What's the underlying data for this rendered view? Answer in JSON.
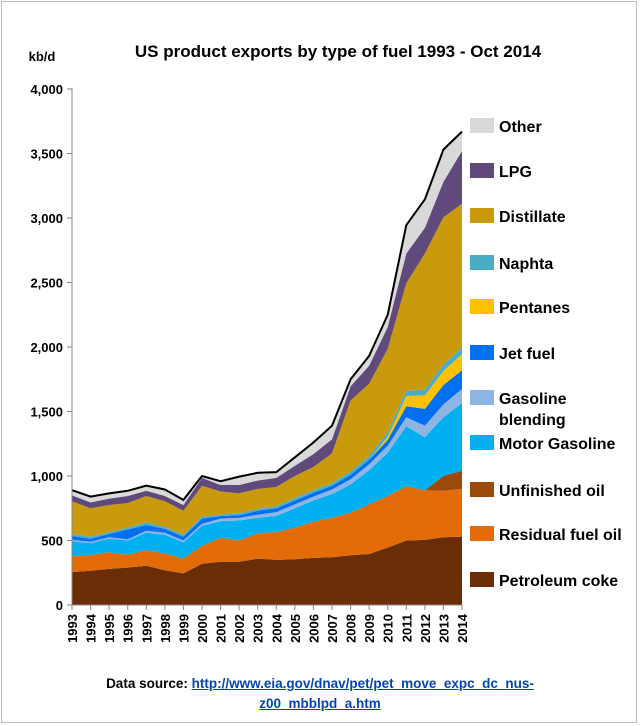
{
  "chart_data": {
    "type": "area",
    "title": "US product exports by type of fuel 1993 - Oct 2014",
    "ylabel": "kb/d",
    "xlabel": "",
    "ylim": [
      0,
      4000
    ],
    "yticks": [
      "0",
      "500",
      "1,000",
      "1,500",
      "2,000",
      "2,500",
      "3,000",
      "3,500",
      "4,000"
    ],
    "categories": [
      "1993",
      "1994",
      "1995",
      "1996",
      "1997",
      "1998",
      "1999",
      "2000",
      "2001",
      "2002",
      "2003",
      "2004",
      "2005",
      "2006",
      "2007",
      "2008",
      "2009",
      "2010",
      "2011",
      "2012",
      "2013",
      "2014"
    ],
    "stacked": true,
    "legend_position": "right",
    "grid": false,
    "series": [
      {
        "name": "Petroleum coke",
        "color": "#6b2d06",
        "values": [
          255,
          265,
          280,
          290,
          305,
          270,
          245,
          320,
          335,
          335,
          360,
          350,
          355,
          365,
          370,
          385,
          395,
          445,
          500,
          505,
          525,
          530
        ]
      },
      {
        "name": "Residual fuel oil",
        "color": "#e36c09",
        "values": [
          125,
          120,
          130,
          100,
          120,
          130,
          115,
          140,
          185,
          165,
          195,
          215,
          245,
          280,
          305,
          330,
          385,
          400,
          420,
          385,
          360,
          370
        ]
      },
      {
        "name": "Unfinished oil",
        "color": "#9c4a0c",
        "values": [
          0,
          0,
          0,
          0,
          0,
          0,
          0,
          0,
          0,
          0,
          0,
          0,
          0,
          0,
          0,
          0,
          0,
          0,
          0,
          0,
          115,
          140
        ]
      },
      {
        "name": "Motor Gasoline",
        "color": "#00b0f0",
        "values": [
          115,
          95,
          105,
          110,
          135,
          145,
          125,
          155,
          130,
          155,
          120,
          125,
          150,
          165,
          185,
          220,
          265,
          335,
          465,
          410,
          455,
          525
        ]
      },
      {
        "name": "Gasoline blending",
        "color": "#8eb4e3",
        "values": [
          10,
          10,
          10,
          10,
          15,
          15,
          15,
          15,
          20,
          20,
          25,
          30,
          30,
          30,
          35,
          40,
          45,
          55,
          70,
          90,
          100,
          110
        ]
      },
      {
        "name": "Jet fuel",
        "color": "#0070f0",
        "values": [
          30,
          25,
          25,
          75,
          45,
          30,
          30,
          40,
          20,
          20,
          30,
          30,
          30,
          30,
          30,
          35,
          35,
          45,
          85,
          130,
          150,
          145
        ]
      },
      {
        "name": "Pentanes",
        "color": "#ffc000",
        "values": [
          0,
          0,
          0,
          0,
          0,
          0,
          0,
          0,
          0,
          0,
          0,
          0,
          0,
          0,
          0,
          0,
          0,
          25,
          80,
          105,
          110,
          125
        ]
      },
      {
        "name": "Naphta",
        "color": "#4bacc6",
        "values": [
          15,
          15,
          15,
          15,
          20,
          15,
          15,
          15,
          10,
          15,
          15,
          15,
          20,
          20,
          20,
          25,
          30,
          35,
          40,
          45,
          50,
          50
        ]
      },
      {
        "name": "Distillate",
        "color": "#c99a0c",
        "values": [
          255,
          220,
          210,
          190,
          205,
          200,
          185,
          240,
          180,
          155,
          155,
          150,
          170,
          180,
          230,
          550,
          560,
          645,
          835,
          1055,
          1140,
          1115
        ]
      },
      {
        "name": "LPG",
        "color": "#604a7b",
        "values": [
          45,
          45,
          50,
          55,
          40,
          40,
          45,
          60,
          50,
          65,
          65,
          70,
          80,
          100,
          110,
          110,
          140,
          170,
          230,
          200,
          275,
          410
        ]
      },
      {
        "name": "Other",
        "color": "#d9d9d9",
        "values": [
          40,
          45,
          40,
          40,
          40,
          50,
          40,
          15,
          30,
          65,
          60,
          45,
          65,
          90,
          105,
          55,
          75,
          95,
          220,
          220,
          250,
          150
        ]
      }
    ]
  },
  "source": {
    "label": "Data source: ",
    "link_line1": "http://www.eia.gov/dnav/pet/pet_move_expc_dc_nus-",
    "link_line2": "z00_mbblpd_a.htm"
  }
}
